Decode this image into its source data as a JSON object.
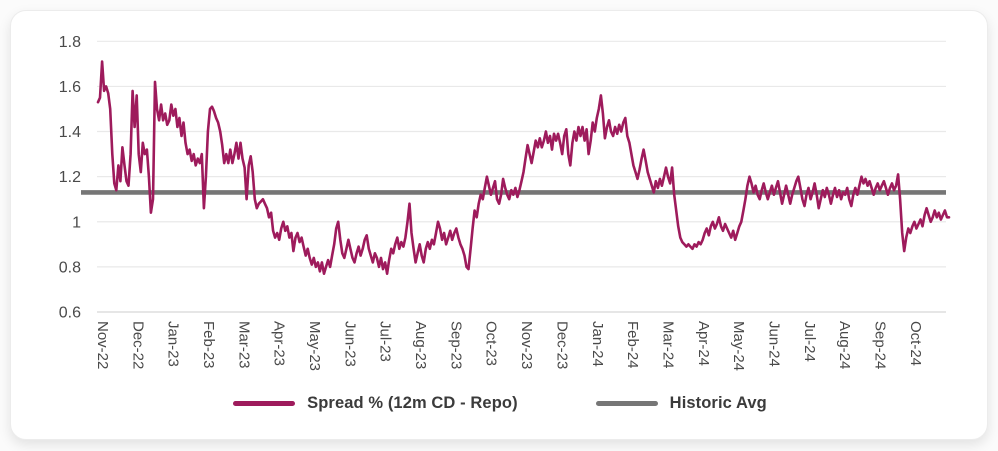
{
  "chart_data": {
    "type": "line",
    "title": "",
    "xlabel": "",
    "ylabel": "",
    "ylim": [
      0.6,
      1.8
    ],
    "y_ticks": [
      0.6,
      0.8,
      1,
      1.2,
      1.4,
      1.6,
      1.8
    ],
    "y_tick_labels": [
      "0.6",
      "0.8",
      "1",
      "1.2",
      "1.4",
      "1.6",
      "1.8"
    ],
    "grid": "horizontal",
    "legend_position": "bottom",
    "x_labels": [
      "Nov-22",
      "Dec-22",
      "Jan-23",
      "Feb-23",
      "Mar-23",
      "Apr-23",
      "May-23",
      "Jun-23",
      "Jul-23",
      "Aug-23",
      "Sep-23",
      "Oct-23",
      "Nov-23",
      "Dec-23",
      "Jan-24",
      "Feb-24",
      "Mar-24",
      "Apr-24",
      "May-24",
      "Jun-24",
      "Jul-24",
      "Aug-24",
      "Sep-24",
      "Oct-24"
    ],
    "series": [
      {
        "name": "Spread % (12m CD - Repo)",
        "color": "#9E1B5C",
        "style": "line",
        "values": [
          1.53,
          1.55,
          1.71,
          1.58,
          1.6,
          1.57,
          1.5,
          1.3,
          1.17,
          1.14,
          1.25,
          1.18,
          1.33,
          1.25,
          1.18,
          1.16,
          1.3,
          1.58,
          1.42,
          1.56,
          1.3,
          1.22,
          1.35,
          1.3,
          1.32,
          1.2,
          1.04,
          1.1,
          1.62,
          1.5,
          1.45,
          1.52,
          1.45,
          1.48,
          1.43,
          1.45,
          1.52,
          1.47,
          1.5,
          1.42,
          1.46,
          1.38,
          1.44,
          1.35,
          1.3,
          1.32,
          1.27,
          1.3,
          1.25,
          1.28,
          1.26,
          1.3,
          1.06,
          1.2,
          1.4,
          1.5,
          1.51,
          1.49,
          1.46,
          1.44,
          1.4,
          1.34,
          1.26,
          1.3,
          1.26,
          1.32,
          1.26,
          1.3,
          1.35,
          1.28,
          1.35,
          1.28,
          1.24,
          1.1,
          1.25,
          1.29,
          1.22,
          1.1,
          1.06,
          1.08,
          1.09,
          1.1,
          1.08,
          1.06,
          1.02,
          1.04,
          0.96,
          0.93,
          0.95,
          0.92,
          0.97,
          1.0,
          0.96,
          0.98,
          0.93,
          0.95,
          0.87,
          0.93,
          0.95,
          0.91,
          0.93,
          0.89,
          0.85,
          0.88,
          0.84,
          0.81,
          0.84,
          0.8,
          0.82,
          0.78,
          0.82,
          0.77,
          0.8,
          0.83,
          0.8,
          0.85,
          0.9,
          0.97,
          1.0,
          0.92,
          0.86,
          0.84,
          0.88,
          0.92,
          0.88,
          0.84,
          0.82,
          0.86,
          0.89,
          0.85,
          0.88,
          0.92,
          0.94,
          0.88,
          0.85,
          0.82,
          0.86,
          0.84,
          0.8,
          0.84,
          0.79,
          0.82,
          0.77,
          0.83,
          0.88,
          0.86,
          0.9,
          0.93,
          0.88,
          0.91,
          0.89,
          0.93,
          1.0,
          1.08,
          0.95,
          0.88,
          0.82,
          0.86,
          0.9,
          0.85,
          0.82,
          0.88,
          0.91,
          0.88,
          0.92,
          0.9,
          0.95,
          1.0,
          0.97,
          0.92,
          0.95,
          0.9,
          0.93,
          0.96,
          0.92,
          0.95,
          0.97,
          0.93,
          0.9,
          0.88,
          0.85,
          0.8,
          0.79,
          0.88,
          0.97,
          1.05,
          1.02,
          1.08,
          1.12,
          1.1,
          1.15,
          1.2,
          1.16,
          1.12,
          1.15,
          1.18,
          1.1,
          1.08,
          1.12,
          1.19,
          1.15,
          1.12,
          1.1,
          1.14,
          1.12,
          1.15,
          1.11,
          1.14,
          1.18,
          1.22,
          1.28,
          1.34,
          1.3,
          1.26,
          1.31,
          1.36,
          1.33,
          1.37,
          1.33,
          1.36,
          1.4,
          1.35,
          1.38,
          1.32,
          1.39,
          1.36,
          1.39,
          1.35,
          1.3,
          1.38,
          1.41,
          1.3,
          1.25,
          1.35,
          1.4,
          1.36,
          1.42,
          1.38,
          1.42,
          1.36,
          1.41,
          1.3,
          1.36,
          1.44,
          1.4,
          1.46,
          1.5,
          1.56,
          1.48,
          1.37,
          1.42,
          1.45,
          1.4,
          1.38,
          1.42,
          1.39,
          1.43,
          1.4,
          1.44,
          1.46,
          1.38,
          1.35,
          1.3,
          1.25,
          1.22,
          1.19,
          1.23,
          1.28,
          1.32,
          1.27,
          1.22,
          1.19,
          1.16,
          1.13,
          1.18,
          1.15,
          1.19,
          1.16,
          1.2,
          1.24,
          1.2,
          1.17,
          1.24,
          1.12,
          1.05,
          0.98,
          0.93,
          0.91,
          0.9,
          0.89,
          0.9,
          0.89,
          0.88,
          0.9,
          0.89,
          0.91,
          0.9,
          0.92,
          0.95,
          0.97,
          0.94,
          0.98,
          1.0,
          0.97,
          0.99,
          1.02,
          0.98,
          0.96,
          0.99,
          0.97,
          0.95,
          0.93,
          0.96,
          0.92,
          0.95,
          0.98,
          1.0,
          1.05,
          1.1,
          1.16,
          1.2,
          1.17,
          1.13,
          1.16,
          1.12,
          1.1,
          1.14,
          1.17,
          1.13,
          1.1,
          1.13,
          1.16,
          1.12,
          1.15,
          1.18,
          1.13,
          1.08,
          1.12,
          1.16,
          1.12,
          1.08,
          1.12,
          1.15,
          1.18,
          1.2,
          1.15,
          1.1,
          1.07,
          1.12,
          1.15,
          1.1,
          1.13,
          1.17,
          1.12,
          1.06,
          1.1,
          1.14,
          1.11,
          1.15,
          1.12,
          1.08,
          1.12,
          1.15,
          1.11,
          1.14,
          1.1,
          1.13,
          1.12,
          1.15,
          1.1,
          1.07,
          1.12,
          1.15,
          1.12,
          1.16,
          1.2,
          1.17,
          1.19,
          1.16,
          1.18,
          1.15,
          1.12,
          1.15,
          1.17,
          1.14,
          1.16,
          1.18,
          1.15,
          1.12,
          1.15,
          1.17,
          1.14,
          1.16,
          1.21,
          1.1,
          0.95,
          0.87,
          0.93,
          0.97,
          0.95,
          0.98,
          1.0,
          0.97,
          0.99,
          1.01,
          0.98,
          1.03,
          1.06,
          1.03,
          1.0,
          1.02,
          1.05,
          1.02,
          1.04,
          1.01,
          1.03,
          1.05,
          1.02,
          1.02
        ]
      },
      {
        "name": "Historic Avg",
        "color": "#767676",
        "style": "constant-line",
        "value": 1.13
      }
    ]
  },
  "legend": {
    "spread_label": "Spread % (12m CD - Repo)",
    "avg_label": "Historic Avg"
  },
  "colors": {
    "spread_line": "#9E1B5C",
    "avg_line": "#767676",
    "gridline": "#e9e9e9",
    "axis_line": "#d6d6d6",
    "tick_text": "#4a4a4a",
    "card_background": "#ffffff",
    "page_background": "#fbfbfb"
  }
}
